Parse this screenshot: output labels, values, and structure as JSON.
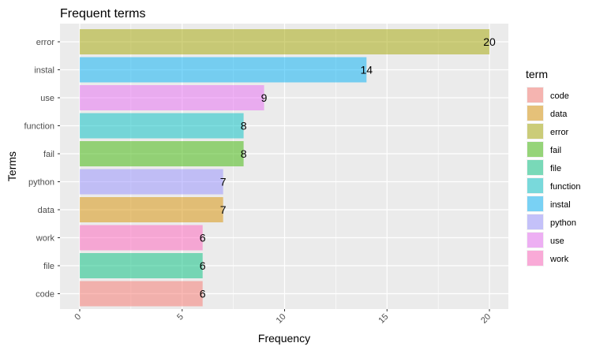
{
  "chart_data": {
    "type": "bar",
    "orientation": "horizontal",
    "title": "Frequent terms",
    "xlabel": "Frequency",
    "ylabel": "Terms",
    "xlim": [
      0,
      20
    ],
    "x_ticks": [
      0,
      5,
      10,
      15,
      20
    ],
    "categories_top_to_bottom": [
      "error",
      "instal",
      "use",
      "function",
      "fail",
      "python",
      "data",
      "work",
      "file",
      "code"
    ],
    "values_top_to_bottom": [
      20,
      14,
      9,
      8,
      8,
      7,
      7,
      6,
      6,
      6
    ],
    "grid": true,
    "legend": {
      "title": "term",
      "position": "right",
      "items": [
        {
          "label": "code",
          "color": "#F8766D"
        },
        {
          "label": "data",
          "color": "#D89000"
        },
        {
          "label": "error",
          "color": "#A3A500"
        },
        {
          "label": "fail",
          "color": "#39B600"
        },
        {
          "label": "file",
          "color": "#00BF7D"
        },
        {
          "label": "function",
          "color": "#00BFC4"
        },
        {
          "label": "instal",
          "color": "#00B0F6"
        },
        {
          "label": "python",
          "color": "#9590FF"
        },
        {
          "label": "use",
          "color": "#E76BF3"
        },
        {
          "label": "work",
          "color": "#FF62BC"
        }
      ]
    },
    "bar_alpha": 0.5,
    "panel_background": "#EBEBEB",
    "grid_color": "#FFFFFF"
  }
}
